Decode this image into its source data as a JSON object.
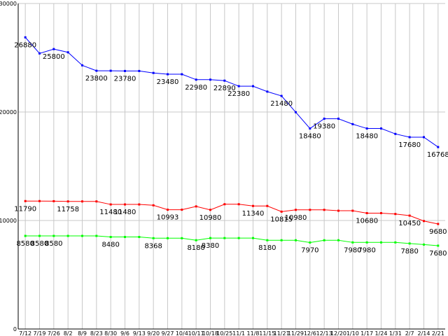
{
  "chart_data": {
    "type": "line",
    "title": "",
    "xlabel": "",
    "ylabel": "",
    "ylim": [
      0,
      30000
    ],
    "yticks": [
      "0",
      "10000",
      "20000",
      "30000"
    ],
    "grid": true,
    "x": [
      "7/12",
      "7/19",
      "7/26",
      "8/2",
      "8/9",
      "8/23",
      "8/30",
      "9/6",
      "9/13",
      "9/20",
      "9/27",
      "10/4",
      "10/11",
      "10/18",
      "10/25",
      "11/1",
      "11/8",
      "11/15",
      "11/21",
      "11/29",
      "12/6",
      "12/13",
      "12/20",
      "1/10",
      "1/17",
      "1/24",
      "1/31",
      "2/7",
      "2/14",
      "2/21"
    ],
    "series": [
      {
        "color": "#0000ff",
        "values": [
          26880,
          25400,
          25800,
          25500,
          24300,
          23800,
          23800,
          23780,
          23780,
          23600,
          23480,
          23480,
          22980,
          22980,
          22890,
          22380,
          22380,
          21880,
          21480,
          19980,
          18480,
          19380,
          19380,
          18880,
          18480,
          18480,
          17980,
          17680,
          17680,
          16768
        ],
        "labels": [
          "26880",
          "25800",
          "23800",
          "23780",
          "23480",
          "22980",
          "22890",
          "22380",
          "21480",
          "18480",
          "19380",
          "18480",
          "17680",
          "16768"
        ]
      },
      {
        "color": "#ff0000",
        "values": [
          11790,
          11790,
          11780,
          11758,
          11758,
          11758,
          11480,
          11480,
          11480,
          11400,
          10993,
          10993,
          11300,
          10980,
          11500,
          11500,
          11340,
          11340,
          10815,
          10980,
          10980,
          10980,
          10900,
          10900,
          10680,
          10680,
          10600,
          10450,
          9950,
          9680
        ],
        "labels": [
          "11790",
          "11758",
          "11480",
          "11480",
          "10993",
          "10980",
          "11340",
          "10815",
          "10980",
          "10680",
          "10450",
          "9680"
        ]
      },
      {
        "color": "#00ff00",
        "values": [
          8580,
          8580,
          8580,
          8580,
          8580,
          8580,
          8480,
          8480,
          8480,
          8368,
          8368,
          8368,
          8180,
          8380,
          8380,
          8380,
          8380,
          8180,
          8180,
          8180,
          7970,
          8180,
          8180,
          7980,
          7980,
          7980,
          7980,
          7880,
          7780,
          7680
        ],
        "labels": [
          "8580",
          "8580",
          "8580",
          "8480",
          "8368",
          "8180",
          "8380",
          "8180",
          "7970",
          "7980",
          "7980",
          "7880",
          "7680"
        ]
      }
    ]
  }
}
